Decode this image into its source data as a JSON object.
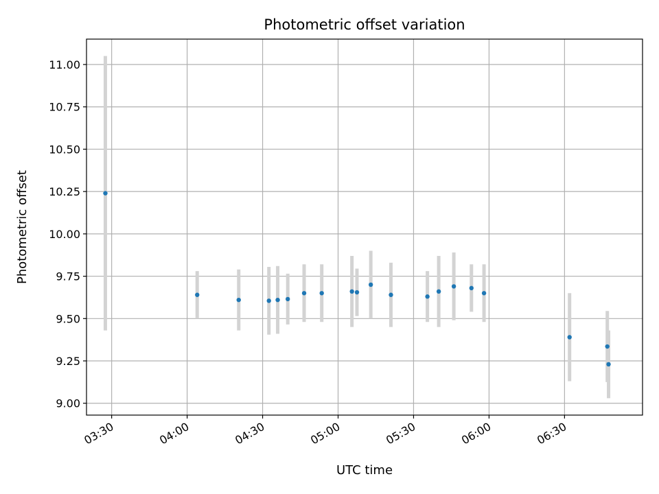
{
  "chart_data": {
    "type": "scatter",
    "title": "Photometric offset variation",
    "xlabel": "UTC time",
    "ylabel": "Photometric offset",
    "grid": true,
    "legend": "none",
    "x_ticks": [
      "03:30",
      "04:00",
      "04:30",
      "05:00",
      "05:30",
      "06:00",
      "06:30"
    ],
    "y_ticks": [
      "9.00",
      "9.25",
      "9.50",
      "9.75",
      "10.00",
      "10.25",
      "10.50",
      "10.75",
      "11.00"
    ],
    "xlim": [
      "03:20",
      "07:01"
    ],
    "ylim": [
      8.93,
      11.15
    ],
    "colors": {
      "point": "#1f77b4",
      "errorbar": "#d3d3d3",
      "grid": "#b0b0b0"
    },
    "points": [
      {
        "x": "03:27:30",
        "y": 10.24,
        "yerr": 0.81
      },
      {
        "x": "04:04:00",
        "y": 9.64,
        "yerr": 0.14
      },
      {
        "x": "04:20:30",
        "y": 9.61,
        "yerr": 0.18
      },
      {
        "x": "04:32:30",
        "y": 9.605,
        "yerr": 0.2
      },
      {
        "x": "04:36:00",
        "y": 9.61,
        "yerr": 0.2
      },
      {
        "x": "04:40:00",
        "y": 9.615,
        "yerr": 0.15
      },
      {
        "x": "04:46:30",
        "y": 9.65,
        "yerr": 0.17
      },
      {
        "x": "04:53:30",
        "y": 9.65,
        "yerr": 0.17
      },
      {
        "x": "05:05:30",
        "y": 9.66,
        "yerr": 0.21
      },
      {
        "x": "05:07:30",
        "y": 9.655,
        "yerr": 0.14
      },
      {
        "x": "05:13:00",
        "y": 9.7,
        "yerr": 0.2
      },
      {
        "x": "05:21:00",
        "y": 9.64,
        "yerr": 0.19
      },
      {
        "x": "05:35:30",
        "y": 9.63,
        "yerr": 0.15
      },
      {
        "x": "05:40:00",
        "y": 9.66,
        "yerr": 0.21
      },
      {
        "x": "05:46:00",
        "y": 9.69,
        "yerr": 0.2
      },
      {
        "x": "05:53:00",
        "y": 9.68,
        "yerr": 0.14
      },
      {
        "x": "05:58:00",
        "y": 9.65,
        "yerr": 0.17
      },
      {
        "x": "06:32:00",
        "y": 9.39,
        "yerr": 0.26
      },
      {
        "x": "06:47:00",
        "y": 9.335,
        "yerr": 0.21
      },
      {
        "x": "06:47:30",
        "y": 9.23,
        "yerr": 0.2
      }
    ]
  }
}
